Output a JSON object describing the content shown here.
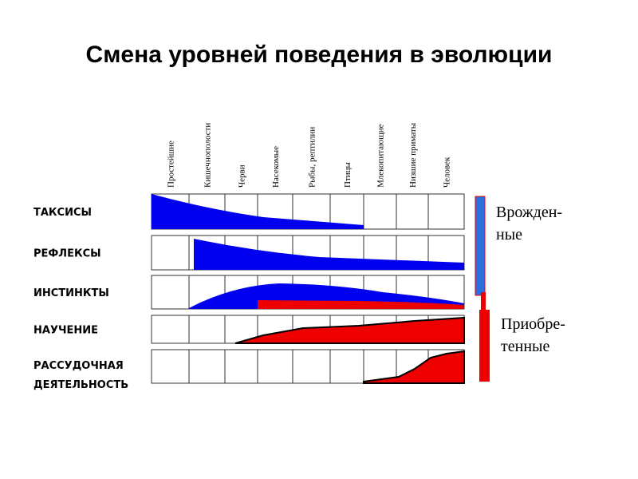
{
  "header": {
    "title": "Смена уровней поведения в эволюции"
  },
  "columns": [
    "Простейшие",
    "Кишечнополости",
    "Черви",
    "Насекомые",
    "Рыбы, рептилии",
    "Птицы",
    "Млекопитающие",
    "Низшие приматы",
    "Человек"
  ],
  "rows": [
    [
      "ТАКСИСЫ"
    ],
    [
      "РЕФЛЕКСЫ"
    ],
    [
      "ИНСТИНКТЫ"
    ],
    [
      "НАУЧЕНИЕ"
    ],
    [
      "РАССУДОЧНАЯ",
      "ДЕЯТЕЛЬНОСТЬ"
    ]
  ],
  "legend": {
    "innate": [
      "Врожден-",
      "ные"
    ],
    "acquired": [
      "Приобре-",
      "тенные"
    ]
  }
}
